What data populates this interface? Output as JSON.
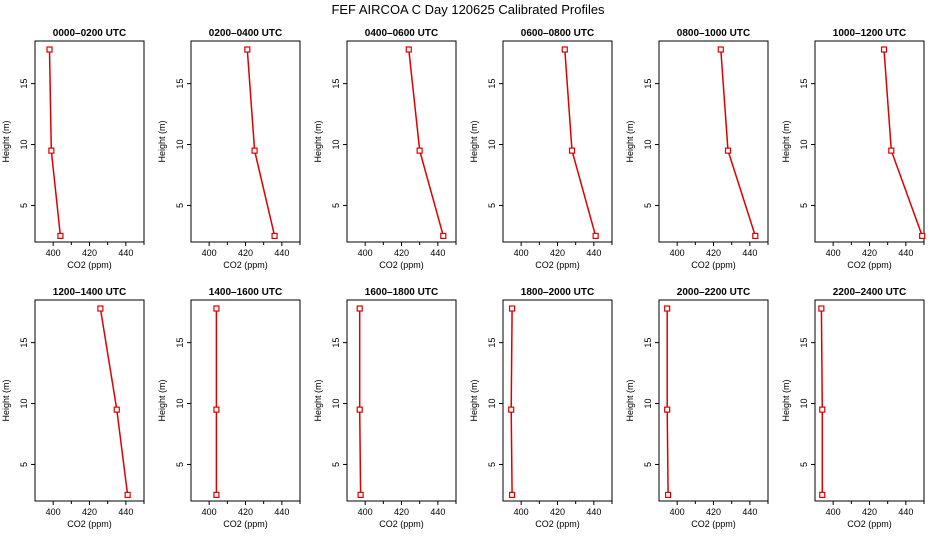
{
  "figure": {
    "title": "FEF AIRCOA C  Day 120625  Calibrated Profiles",
    "series_color": "#dd0000"
  },
  "chart_data": [
    {
      "type": "line",
      "title": "0000–0200 UTC",
      "xlabel": "CO2 (ppm)",
      "ylabel": "Height (m)",
      "xlim": [
        390,
        450
      ],
      "ylim": [
        2,
        18.5
      ],
      "xticks": [
        400,
        420,
        440
      ],
      "yticks": [
        5,
        10,
        15
      ],
      "series": [
        {
          "x": [
            404,
            399,
            398
          ],
          "y": [
            2.5,
            9.5,
            17.8
          ]
        }
      ]
    },
    {
      "type": "line",
      "title": "0200–0400 UTC",
      "xlabel": "CO2 (ppm)",
      "ylabel": "Height (m)",
      "xlim": [
        390,
        450
      ],
      "ylim": [
        2,
        18.5
      ],
      "xticks": [
        400,
        420,
        440
      ],
      "yticks": [
        5,
        10,
        15
      ],
      "series": [
        {
          "x": [
            436,
            425,
            421
          ],
          "y": [
            2.5,
            9.5,
            17.8
          ]
        }
      ]
    },
    {
      "type": "line",
      "title": "0400–0600 UTC",
      "xlabel": "CO2 (ppm)",
      "ylabel": "Height (m)",
      "xlim": [
        390,
        450
      ],
      "ylim": [
        2,
        18.5
      ],
      "xticks": [
        400,
        420,
        440
      ],
      "yticks": [
        5,
        10,
        15
      ],
      "series": [
        {
          "x": [
            443,
            430,
            424
          ],
          "y": [
            2.5,
            9.5,
            17.8
          ]
        }
      ]
    },
    {
      "type": "line",
      "title": "0600–0800 UTC",
      "xlabel": "CO2 (ppm)",
      "ylabel": "Height (m)",
      "xlim": [
        390,
        450
      ],
      "ylim": [
        2,
        18.5
      ],
      "xticks": [
        400,
        420,
        440
      ],
      "yticks": [
        5,
        10,
        15
      ],
      "series": [
        {
          "x": [
            441,
            428,
            424
          ],
          "y": [
            2.5,
            9.5,
            17.8
          ]
        }
      ]
    },
    {
      "type": "line",
      "title": "0800–1000 UTC",
      "xlabel": "CO2 (ppm)",
      "ylabel": "Height (m)",
      "xlim": [
        390,
        450
      ],
      "ylim": [
        2,
        18.5
      ],
      "xticks": [
        400,
        420,
        440
      ],
      "yticks": [
        5,
        10,
        15
      ],
      "series": [
        {
          "x": [
            443,
            428,
            424
          ],
          "y": [
            2.5,
            9.5,
            17.8
          ]
        }
      ]
    },
    {
      "type": "line",
      "title": "1000–1200 UTC",
      "xlabel": "CO2 (ppm)",
      "ylabel": "Height (m)",
      "xlim": [
        390,
        450
      ],
      "ylim": [
        2,
        18.5
      ],
      "xticks": [
        400,
        420,
        440
      ],
      "yticks": [
        5,
        10,
        15
      ],
      "series": [
        {
          "x": [
            449,
            432,
            428
          ],
          "y": [
            2.5,
            9.5,
            17.8
          ]
        }
      ]
    },
    {
      "type": "line",
      "title": "1200–1400 UTC",
      "xlabel": "CO2 (ppm)",
      "ylabel": "Height (m)",
      "xlim": [
        390,
        450
      ],
      "ylim": [
        2,
        18.5
      ],
      "xticks": [
        400,
        420,
        440
      ],
      "yticks": [
        5,
        10,
        15
      ],
      "series": [
        {
          "x": [
            441,
            435,
            426
          ],
          "y": [
            2.5,
            9.5,
            17.8
          ]
        }
      ]
    },
    {
      "type": "line",
      "title": "1400–1600 UTC",
      "xlabel": "CO2 (ppm)",
      "ylabel": "Height (m)",
      "xlim": [
        390,
        450
      ],
      "ylim": [
        2,
        18.5
      ],
      "xticks": [
        400,
        420,
        440
      ],
      "yticks": [
        5,
        10,
        15
      ],
      "series": [
        {
          "x": [
            404,
            404,
            404
          ],
          "y": [
            2.5,
            9.5,
            17.8
          ]
        }
      ]
    },
    {
      "type": "line",
      "title": "1600–1800 UTC",
      "xlabel": "CO2 (ppm)",
      "ylabel": "Height (m)",
      "xlim": [
        390,
        450
      ],
      "ylim": [
        2,
        18.5
      ],
      "xticks": [
        400,
        420,
        440
      ],
      "yticks": [
        5,
        10,
        15
      ],
      "series": [
        {
          "x": [
            397.5,
            397,
            397
          ],
          "y": [
            2.5,
            9.5,
            17.8
          ]
        }
      ]
    },
    {
      "type": "line",
      "title": "1800–2000 UTC",
      "xlabel": "CO2 (ppm)",
      "ylabel": "Height (m)",
      "xlim": [
        390,
        450
      ],
      "ylim": [
        2,
        18.5
      ],
      "xticks": [
        400,
        420,
        440
      ],
      "yticks": [
        5,
        10,
        15
      ],
      "series": [
        {
          "x": [
            395,
            394.5,
            395
          ],
          "y": [
            2.5,
            9.5,
            17.8
          ]
        }
      ]
    },
    {
      "type": "line",
      "title": "2000–2200 UTC",
      "xlabel": "CO2 (ppm)",
      "ylabel": "Height (m)",
      "xlim": [
        390,
        450
      ],
      "ylim": [
        2,
        18.5
      ],
      "xticks": [
        400,
        420,
        440
      ],
      "yticks": [
        5,
        10,
        15
      ],
      "series": [
        {
          "x": [
            395,
            394.5,
            394.5
          ],
          "y": [
            2.5,
            9.5,
            17.8
          ]
        }
      ]
    },
    {
      "type": "line",
      "title": "2200–2400 UTC",
      "xlabel": "CO2 (ppm)",
      "ylabel": "Height (m)",
      "xlim": [
        390,
        450
      ],
      "ylim": [
        2,
        18.5
      ],
      "xticks": [
        400,
        420,
        440
      ],
      "yticks": [
        5,
        10,
        15
      ],
      "series": [
        {
          "x": [
            394,
            394,
            393.5
          ],
          "y": [
            2.5,
            9.5,
            17.8
          ]
        }
      ]
    }
  ]
}
